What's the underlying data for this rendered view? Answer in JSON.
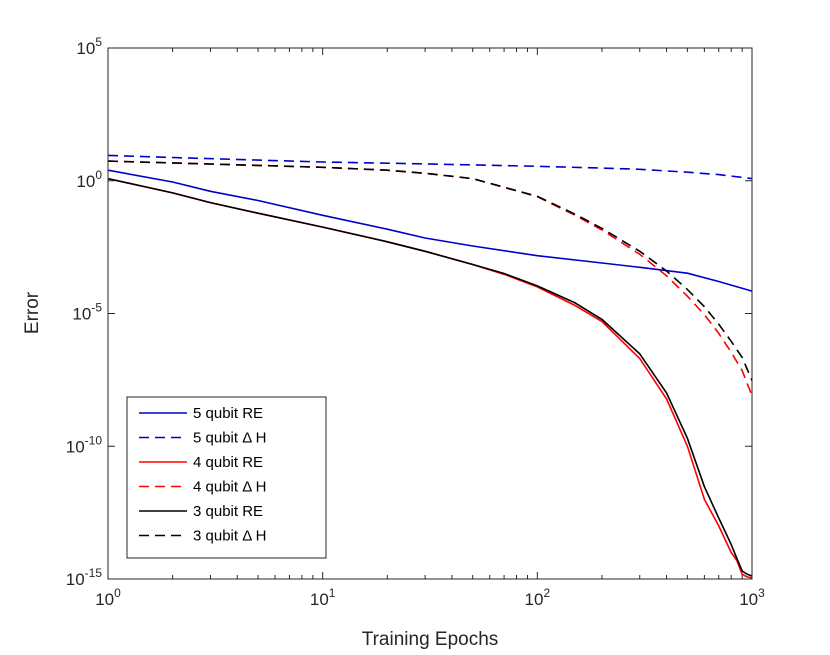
{
  "chart_data": {
    "type": "line",
    "title": "",
    "xlabel": "Training Epochs",
    "ylabel": "Error",
    "xscale": "log",
    "yscale": "log",
    "xlim": [
      1,
      1000
    ],
    "ylim": [
      1e-15,
      100000
    ],
    "xticks": [
      {
        "value": 1,
        "base": "10",
        "exp": "0"
      },
      {
        "value": 10,
        "base": "10",
        "exp": "1"
      },
      {
        "value": 100,
        "base": "10",
        "exp": "2"
      },
      {
        "value": 1000,
        "base": "10",
        "exp": "3"
      }
    ],
    "yticks": [
      {
        "value": 1e-15,
        "base": "10",
        "exp": "-15"
      },
      {
        "value": 1e-10,
        "base": "10",
        "exp": "-10"
      },
      {
        "value": 1e-05,
        "base": "10",
        "exp": "-5"
      },
      {
        "value": 1,
        "base": "10",
        "exp": "0"
      },
      {
        "value": 100000,
        "base": "10",
        "exp": "5"
      }
    ],
    "legend_position": "bottom-left",
    "series": [
      {
        "name": "5 qubit RE",
        "color": "#0000cc",
        "dash": "solid",
        "x": [
          1,
          2,
          3,
          5,
          10,
          20,
          30,
          50,
          100,
          200,
          300,
          500,
          700,
          1000
        ],
        "y": [
          2.5,
          0.9,
          0.4,
          0.18,
          0.05,
          0.015,
          0.007,
          0.0035,
          0.0015,
          0.0008,
          0.00055,
          0.00033,
          0.00016,
          7e-05
        ]
      },
      {
        "name": "5 qubit Δ H",
        "color": "#0000cc",
        "dash": "dashed",
        "x": [
          1,
          2,
          5,
          10,
          30,
          100,
          200,
          300,
          500,
          700,
          1000
        ],
        "y": [
          9,
          7.5,
          6,
          5.1,
          4.3,
          3.5,
          3.0,
          2.7,
          2.1,
          1.7,
          1.2
        ]
      },
      {
        "name": "4 qubit RE",
        "color": "#ff0000",
        "dash": "solid",
        "x": [
          1,
          2,
          3,
          5,
          10,
          20,
          30,
          50,
          70,
          100,
          150,
          200,
          300,
          400,
          500,
          600,
          700,
          800,
          850,
          900,
          950,
          1000
        ],
        "y": [
          1.2,
          0.35,
          0.15,
          0.06,
          0.018,
          0.005,
          0.0022,
          0.0007,
          0.0003,
          0.0001,
          2e-05,
          5e-06,
          2e-07,
          6e-09,
          1e-10,
          1e-12,
          1e-13,
          1e-14,
          5e-15,
          1.5e-15,
          1.2e-15,
          1.1e-15
        ]
      },
      {
        "name": "4 qubit Δ H",
        "color": "#ff0000",
        "dash": "dashed",
        "x": [
          1,
          5,
          10,
          20,
          30,
          50,
          100,
          150,
          200,
          300,
          400,
          500,
          600,
          700,
          800,
          900,
          1000
        ],
        "y": [
          5.5,
          3.8,
          3.2,
          2.5,
          1.9,
          1.2,
          0.25,
          0.05,
          0.014,
          0.0017,
          0.00026,
          4.5e-05,
          9e-06,
          1.8e-06,
          3.5e-07,
          7e-08,
          8e-09
        ]
      },
      {
        "name": "3 qubit RE",
        "color": "#000000",
        "dash": "solid",
        "x": [
          1,
          2,
          3,
          5,
          10,
          20,
          30,
          50,
          70,
          100,
          150,
          200,
          300,
          400,
          500,
          600,
          700,
          800,
          850,
          900,
          950,
          1000
        ],
        "y": [
          1.2,
          0.35,
          0.15,
          0.06,
          0.018,
          0.005,
          0.0022,
          0.0007,
          0.00032,
          0.00011,
          2.5e-05,
          6e-06,
          3e-07,
          1e-08,
          2e-10,
          3e-12,
          2e-13,
          2e-14,
          6e-15,
          2e-15,
          1.5e-15,
          1.3e-15
        ]
      },
      {
        "name": "3 qubit Δ H",
        "color": "#000000",
        "dash": "dashed",
        "x": [
          1,
          5,
          10,
          20,
          30,
          50,
          100,
          150,
          200,
          300,
          400,
          500,
          600,
          700,
          800,
          900,
          1000
        ],
        "y": [
          5.5,
          3.8,
          3.2,
          2.5,
          1.9,
          1.2,
          0.26,
          0.055,
          0.016,
          0.0022,
          0.0004,
          8e-05,
          1.8e-05,
          4e-06,
          9e-07,
          2.2e-07,
          3e-08
        ]
      }
    ]
  }
}
